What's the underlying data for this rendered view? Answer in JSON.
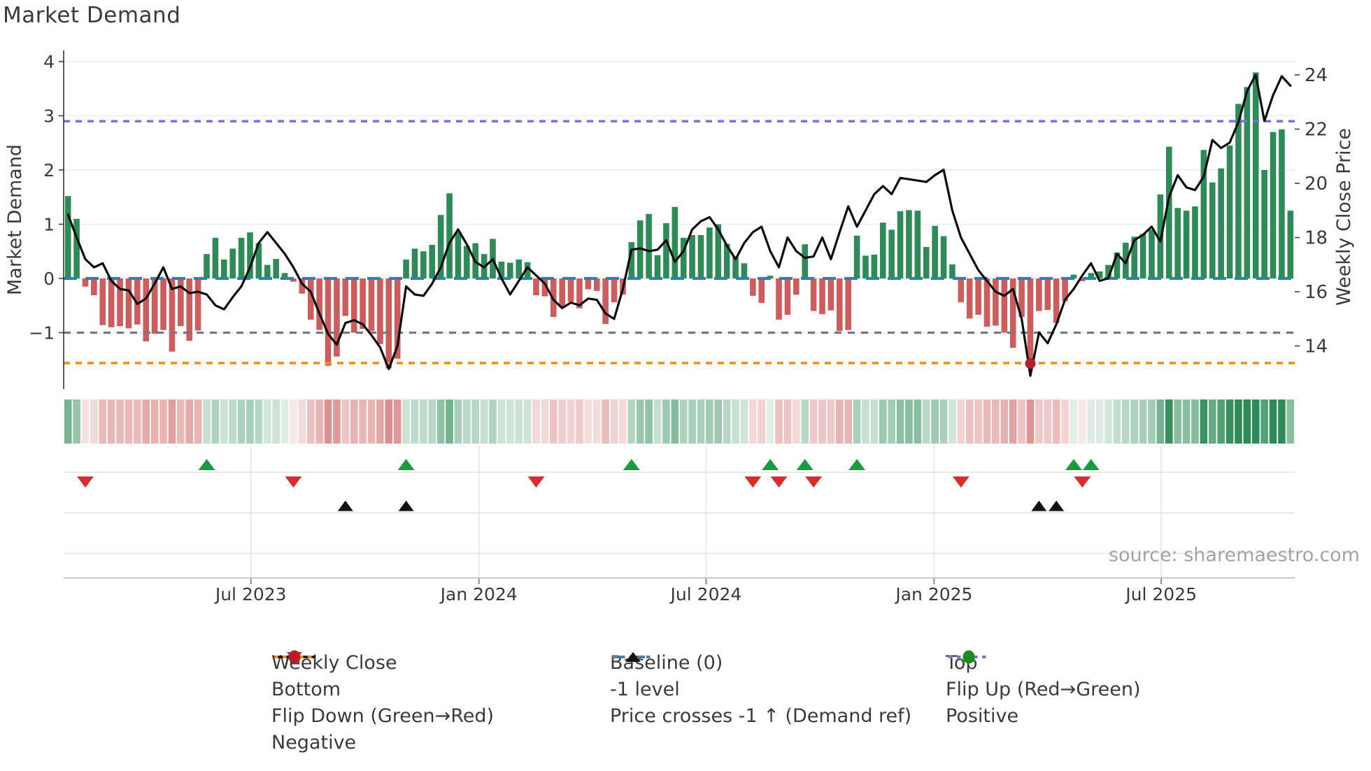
{
  "title": "Market Demand",
  "source_text": "source: sharemaestro.com",
  "axes": {
    "left_label": "Market Demand",
    "right_label": "Weekly Close Price",
    "left_ticks": [
      4,
      3,
      2,
      1,
      0,
      -1
    ],
    "right_ticks": [
      24,
      22,
      20,
      18,
      16,
      14
    ],
    "x_ticks": [
      {
        "label": "Jul 2023",
        "index": 21.6
      },
      {
        "label": "Jan 2024",
        "index": 47.9
      },
      {
        "label": "Jul 2024",
        "index": 74.1
      },
      {
        "label": "Jan 2025",
        "index": 100.4
      },
      {
        "label": "Jul 2025",
        "index": 126.6
      }
    ]
  },
  "chart_data": {
    "type": "bar+line",
    "n_weeks": 142,
    "title": "Market Demand",
    "ylabel_left": "Market Demand",
    "ylabel_right": "Weekly Close Price",
    "ylim_left": [
      -2.05,
      4.2
    ],
    "ylim_right": [
      12.4,
      24.9
    ],
    "ref_levels": {
      "top": 2.9,
      "baseline": 0,
      "minus1": -1,
      "bottom": -1.56
    },
    "demand": [
      1.52,
      1.1,
      -0.15,
      -0.31,
      -0.86,
      -0.9,
      -0.88,
      -0.92,
      -0.85,
      -1.16,
      -1.02,
      -0.95,
      -1.35,
      -0.88,
      -1.15,
      -0.96,
      0.45,
      0.75,
      0.35,
      0.55,
      0.75,
      0.85,
      0.65,
      0.25,
      0.36,
      0.1,
      -0.06,
      -0.28,
      -0.76,
      -0.95,
      -1.61,
      -1.44,
      -0.69,
      -1.0,
      -0.93,
      -0.97,
      -1.21,
      -1.66,
      -1.48,
      0.35,
      0.55,
      0.5,
      0.62,
      1.17,
      1.57,
      0.85,
      0.6,
      0.65,
      0.45,
      0.73,
      0.31,
      0.29,
      0.35,
      0.3,
      -0.31,
      -0.33,
      -0.71,
      -0.54,
      -0.43,
      -0.55,
      -0.2,
      -0.23,
      -0.84,
      -0.44,
      -0.3,
      0.67,
      1.07,
      1.19,
      0.43,
      1.02,
      1.32,
      0.75,
      0.8,
      0.8,
      0.94,
      1.0,
      0.64,
      0.4,
      0.28,
      -0.32,
      -0.45,
      0.05,
      -0.76,
      -0.67,
      -0.3,
      0.63,
      -0.6,
      -0.66,
      -0.59,
      -0.97,
      -0.95,
      0.79,
      0.42,
      0.44,
      1.03,
      0.9,
      1.24,
      1.26,
      1.25,
      0.58,
      0.97,
      0.78,
      0.26,
      -0.44,
      -0.74,
      -0.67,
      -0.89,
      -0.87,
      -1.0,
      -1.28,
      -0.71,
      -1.57,
      -0.6,
      -0.58,
      -0.82,
      -0.42,
      0.07,
      -0.05,
      0.1,
      0.13,
      0.25,
      0.48,
      0.66,
      0.77,
      0.82,
      0.9,
      1.55,
      2.43,
      1.3,
      1.25,
      1.33,
      2.37,
      1.77,
      2.03,
      2.45,
      3.22,
      3.53,
      3.8,
      2.0,
      2.7,
      2.75,
      1.25
    ],
    "price": [
      18.85,
      18.0,
      17.2,
      16.9,
      17.05,
      16.4,
      16.1,
      16.05,
      15.55,
      15.75,
      16.3,
      16.9,
      16.1,
      16.2,
      15.95,
      16.0,
      15.9,
      15.5,
      15.35,
      15.8,
      16.2,
      16.9,
      17.8,
      18.2,
      17.8,
      17.4,
      16.9,
      16.3,
      16.0,
      15.2,
      14.45,
      14.05,
      14.85,
      14.95,
      14.8,
      14.4,
      13.95,
      13.15,
      14.0,
      16.2,
      15.9,
      15.85,
      16.3,
      16.9,
      17.8,
      18.3,
      17.75,
      17.1,
      16.9,
      17.2,
      16.5,
      15.9,
      16.4,
      16.9,
      16.6,
      16.3,
      15.7,
      15.4,
      15.6,
      15.5,
      15.75,
      15.7,
      15.2,
      15.0,
      16.1,
      17.55,
      17.6,
      17.5,
      17.55,
      17.9,
      17.1,
      17.5,
      18.3,
      18.6,
      18.75,
      18.3,
      17.7,
      17.2,
      17.8,
      18.2,
      18.4,
      17.5,
      16.9,
      18.0,
      17.5,
      17.25,
      17.3,
      18.0,
      17.2,
      18.2,
      19.15,
      18.4,
      19.0,
      19.6,
      19.9,
      19.6,
      20.2,
      20.15,
      20.1,
      20.05,
      20.3,
      20.5,
      19.0,
      18.0,
      17.4,
      16.8,
      16.4,
      16.0,
      15.85,
      16.1,
      15.0,
      12.9,
      14.5,
      14.1,
      14.8,
      15.7,
      16.1,
      16.6,
      17.05,
      16.4,
      16.5,
      17.4,
      17.05,
      17.9,
      18.1,
      18.4,
      17.85,
      19.5,
      20.3,
      19.85,
      19.75,
      20.25,
      21.6,
      21.3,
      21.5,
      22.25,
      23.4,
      24.0,
      22.3,
      23.25,
      23.95,
      23.6
    ],
    "markers": {
      "flip_up_weeks": [
        16,
        39,
        65,
        81,
        85,
        91,
        116,
        118
      ],
      "flip_down_weeks": [
        2,
        26,
        54,
        79,
        82,
        86,
        103,
        117
      ],
      "price_cross_weeks": [
        32,
        39,
        112,
        114
      ],
      "negative_dot_weeks": [
        111
      ]
    }
  },
  "legend": {
    "columns": [
      [
        {
          "swatch": "line",
          "label": "Weekly Close",
          "color": "#111111"
        },
        {
          "swatch": "dots",
          "label": "Bottom",
          "color": "#ee9020"
        },
        {
          "swatch": "tri-down",
          "label": "Flip Down (Green→Red)",
          "color": "#d62e2e"
        },
        {
          "swatch": "circle",
          "label": "Negative",
          "color": "#b42025"
        }
      ],
      [
        {
          "swatch": "dashes",
          "label": "Baseline (0)",
          "color": "#2e7ebb"
        },
        {
          "swatch": "dots",
          "label": "-1 level",
          "color": "#77777f"
        },
        {
          "swatch": "tri-up",
          "label": "Price crosses -1 ↑ (Demand ref)",
          "color": "#111111"
        }
      ],
      [
        {
          "swatch": "dots",
          "label": "Top",
          "color": "#7c6fe0"
        },
        {
          "swatch": "tri-up",
          "label": "Flip Up (Red→Green)",
          "color": "#189c3e"
        },
        {
          "swatch": "circle",
          "label": "Positive",
          "color": "#1e8b22"
        }
      ]
    ]
  },
  "colors": {
    "bar_positive": "#2e8b57",
    "bar_negative": "#cd5c5c",
    "price_line": "#0d0d0d",
    "baseline": "#2e7ebb",
    "top_line": "#7c6fe0",
    "bottom_line": "#ee9020",
    "minus1_line": "#77777f",
    "flip_up": "#189c3e",
    "flip_down": "#d62e2e",
    "price_cross": "#111111",
    "negative_dot": "#b42025",
    "grid": "#e9ecf4",
    "panel_grid": "#e2e2e2",
    "tick_text": "#3a3a3a"
  }
}
